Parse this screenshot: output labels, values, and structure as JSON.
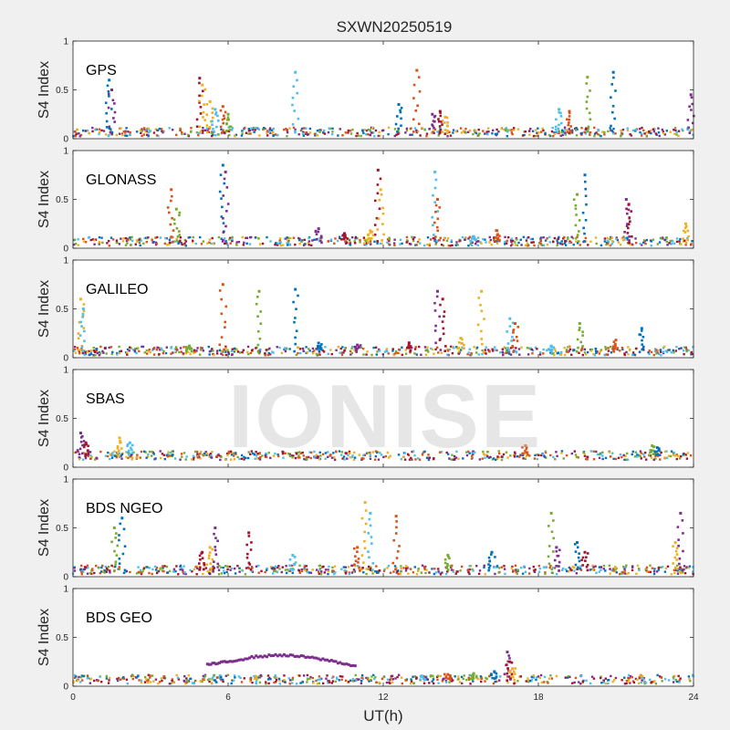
{
  "figure": {
    "title": "SXWN20250519",
    "xlabel": "UT(h)",
    "watermark": "IONISE"
  },
  "colors": {
    "palette": [
      "#0072BD",
      "#D95319",
      "#EDB120",
      "#7E2F8E",
      "#77AC30",
      "#4DBEEE",
      "#A2142F"
    ],
    "figure_bg": "#f0f0f0",
    "axes_bg": "#ffffff"
  },
  "chart_data": [
    {
      "type": "scatter",
      "label": "GPS",
      "ylabel": "S4 Index",
      "xlim": [
        0,
        24
      ],
      "ylim": [
        0,
        1
      ],
      "xticks": [
        "0",
        "6",
        "12",
        "18",
        "24"
      ],
      "yticks": [
        "0",
        "0.5",
        "1"
      ],
      "baseline": 0.07,
      "series": [
        {
          "x": [
            1.4,
            1.5,
            4.9,
            5.0,
            8.6,
            13.3,
            19.9,
            20.9,
            23.9
          ],
          "y": [
            0.6,
            0.5,
            0.62,
            0.55,
            0.68,
            0.7,
            0.63,
            0.68,
            0.45
          ]
        },
        {
          "x": [
            5.3,
            5.5,
            5.8,
            6.0,
            12.6,
            13.9,
            14.2,
            14.4,
            18.8,
            19.2
          ],
          "y": [
            0.38,
            0.3,
            0.33,
            0.25,
            0.35,
            0.25,
            0.28,
            0.22,
            0.3,
            0.28
          ]
        }
      ]
    },
    {
      "type": "scatter",
      "label": "GLONASS",
      "ylabel": "S4 Index",
      "xlim": [
        0,
        24
      ],
      "ylim": [
        0,
        1
      ],
      "xticks": [
        "0",
        "6",
        "12",
        "18",
        "24"
      ],
      "yticks": [
        "0",
        "0.5",
        "1"
      ],
      "baseline": 0.07,
      "series": [
        {
          "x": [
            3.8,
            4.0,
            5.8,
            5.9,
            11.8,
            11.9,
            14.0,
            14.1,
            19.5,
            19.8,
            21.4,
            21.5,
            23.7
          ],
          "y": [
            0.6,
            0.4,
            0.85,
            0.78,
            0.8,
            0.6,
            0.78,
            0.5,
            0.55,
            0.75,
            0.5,
            0.45,
            0.25
          ]
        },
        {
          "x": [
            9.5,
            10.5,
            11.5,
            15.5,
            16.4
          ],
          "y": [
            0.2,
            0.15,
            0.18,
            0.12,
            0.18
          ]
        }
      ]
    },
    {
      "type": "scatter",
      "label": "GALILEO",
      "ylabel": "S4 Index",
      "xlim": [
        0,
        24
      ],
      "ylim": [
        0,
        1
      ],
      "xticks": [
        "0",
        "6",
        "12",
        "18",
        "24"
      ],
      "yticks": [
        "0",
        "0.5",
        "1"
      ],
      "baseline": 0.07,
      "series": [
        {
          "x": [
            0.3,
            0.4,
            5.8,
            7.2,
            8.6,
            14.1,
            14.3,
            15.8,
            16.9,
            17.1,
            19.6,
            22.0
          ],
          "y": [
            0.6,
            0.5,
            0.75,
            0.68,
            0.7,
            0.68,
            0.6,
            0.68,
            0.4,
            0.35,
            0.35,
            0.3
          ]
        },
        {
          "x": [
            4.5,
            9.5,
            11.0,
            13.0,
            15.0,
            18.5,
            21.0
          ],
          "y": [
            0.12,
            0.15,
            0.13,
            0.15,
            0.2,
            0.12,
            0.18
          ]
        }
      ]
    },
    {
      "type": "scatter",
      "label": "SBAS",
      "ylabel": "S4 Index",
      "xlim": [
        0,
        24
      ],
      "ylim": [
        0,
        1
      ],
      "xticks": [
        "0",
        "6",
        "12",
        "18",
        "24"
      ],
      "yticks": [
        "0",
        "0.5",
        "1"
      ],
      "baseline": 0.12,
      "series": [
        {
          "x": [
            0.3,
            0.5,
            1.8,
            2.2,
            17.5,
            22.4,
            22.6
          ],
          "y": [
            0.35,
            0.25,
            0.3,
            0.25,
            0.22,
            0.22,
            0.2
          ]
        }
      ]
    },
    {
      "type": "scatter",
      "label": "BDS NGEO",
      "ylabel": "S4 Index",
      "xlim": [
        0,
        24
      ],
      "ylim": [
        0,
        1
      ],
      "xticks": [
        "0",
        "6",
        "12",
        "18",
        "24"
      ],
      "yticks": [
        "0",
        "0.5",
        "1"
      ],
      "baseline": 0.07,
      "series": [
        {
          "x": [
            1.6,
            1.9,
            5.5,
            6.8,
            11.3,
            11.5,
            12.5,
            18.5,
            19.5,
            23.5
          ],
          "y": [
            0.5,
            0.6,
            0.5,
            0.45,
            0.76,
            0.65,
            0.62,
            0.65,
            0.35,
            0.65
          ]
        },
        {
          "x": [
            5.0,
            5.3,
            8.5,
            11.0,
            14.5,
            16.2,
            18.7,
            19.8,
            23.3
          ],
          "y": [
            0.25,
            0.3,
            0.22,
            0.3,
            0.22,
            0.25,
            0.3,
            0.25,
            0.35
          ]
        }
      ]
    },
    {
      "type": "scatter",
      "label": "BDS GEO",
      "ylabel": "S4 Index",
      "xlim": [
        0,
        24
      ],
      "ylim": [
        0,
        1
      ],
      "xticks": [
        "0",
        "6",
        "12",
        "18",
        "24"
      ],
      "yticks": [
        "0",
        "0.5",
        "1"
      ],
      "baseline": 0.07,
      "arc": {
        "x": [
          5.2,
          6.0,
          7.0,
          8.0,
          9.0,
          10.0,
          11.0
        ],
        "y": [
          0.22,
          0.25,
          0.3,
          0.32,
          0.3,
          0.26,
          0.2
        ]
      },
      "series": [
        {
          "x": [
            13.5,
            14.5,
            15.5,
            16.3,
            16.8,
            16.9,
            17.0
          ],
          "y": [
            0.1,
            0.12,
            0.13,
            0.15,
            0.35,
            0.25,
            0.18
          ]
        }
      ]
    }
  ]
}
